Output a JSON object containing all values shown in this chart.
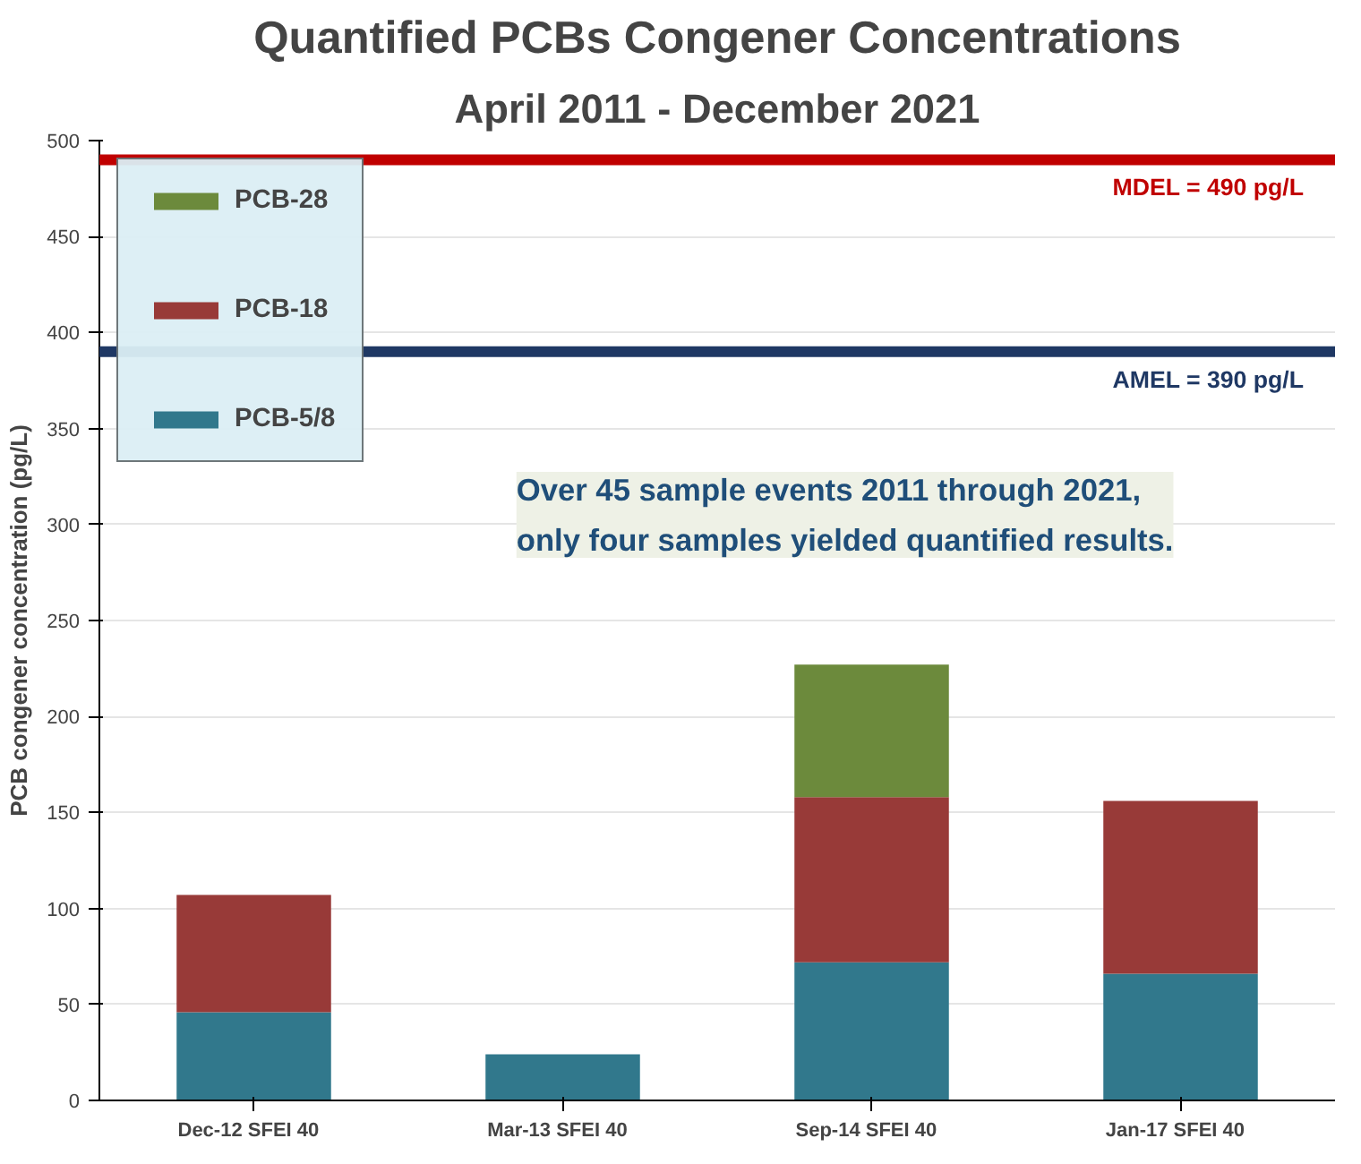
{
  "chart_data": {
    "type": "bar",
    "stacked": true,
    "title": "Quantified PCBs Congener Concentrations",
    "subtitle": "April 2011 - December 2021",
    "ylabel": "PCB congener concentration (pg/L)",
    "categories": [
      "Dec-12   SFEI 40",
      "Mar-13   SFEI 40",
      "Sep-14   SFEI 40",
      "Jan-17   SFEI 40"
    ],
    "series": [
      {
        "name": "PCB-5/8",
        "color": "#31788c",
        "values": [
          46,
          24,
          72,
          66
        ]
      },
      {
        "name": "PCB-18",
        "color": "#983a38",
        "values": [
          61,
          null,
          86,
          90
        ]
      },
      {
        "name": "PCB-28",
        "color": "#6c8a3c",
        "values": [
          null,
          null,
          69,
          null
        ]
      }
    ],
    "ylim": [
      0,
      500
    ],
    "yticks": [
      0,
      50,
      100,
      150,
      200,
      250,
      300,
      350,
      400,
      450,
      500
    ],
    "grid": "y",
    "legend": "top left",
    "ref_lines": [
      {
        "axis": "y",
        "value": 490,
        "label": "MDEL = 490 pg/L",
        "color": "#c00000"
      },
      {
        "axis": "y",
        "value": 390,
        "label": "AMEL = 390 pg/L",
        "color": "#1f3864"
      }
    ],
    "annotations": [
      "Over 45 sample events 2011 through 2021,\nonly four samples yielded quantified results."
    ]
  }
}
